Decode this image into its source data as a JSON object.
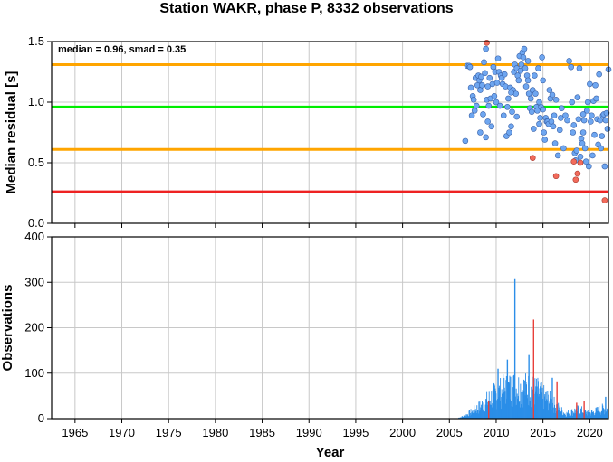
{
  "chart_data": [
    {
      "type": "scatter",
      "title": "Station WAKR, phase P, 8332 observations",
      "ylabel": "Median residual [s]",
      "xlim": [
        1962.5,
        2022.0
      ],
      "ylim": [
        0.0,
        1.5
      ],
      "yticks": [
        "0.0",
        "0.5",
        "1.0",
        "1.5"
      ],
      "grid": true,
      "annotation": "median = 0.96, smad = 0.35",
      "hlines": [
        {
          "value": 1.31,
          "color": "#ffa500"
        },
        {
          "value": 0.96,
          "color": "#00ee00"
        },
        {
          "value": 0.61,
          "color": "#ffa500"
        },
        {
          "value": 0.26,
          "color": "#ee2222"
        }
      ],
      "point_colors": {
        "normal": "#6ea6f0",
        "outlier": "#f26b5b"
      },
      "points": [
        [
          2006.9,
          1.3
        ],
        [
          2007.1,
          1.3
        ],
        [
          2007.2,
          1.29
        ],
        [
          2007.3,
          1.12
        ],
        [
          2007.4,
          0.89
        ],
        [
          2007.5,
          1.05
        ],
        [
          2007.6,
          1.02
        ],
        [
          2007.7,
          0.93
        ],
        [
          2007.8,
          1.2
        ],
        [
          2007.9,
          0.97
        ],
        [
          2008.0,
          1.14
        ],
        [
          2008.1,
          1.22
        ],
        [
          2008.2,
          1.18
        ],
        [
          2008.3,
          1.1
        ],
        [
          2008.4,
          1.21
        ],
        [
          2008.5,
          1.14
        ],
        [
          2008.6,
          0.9
        ],
        [
          2008.7,
          1.33
        ],
        [
          2008.8,
          1.24
        ],
        [
          2008.9,
          1.44
        ],
        [
          2009.0,
          1.02
        ],
        [
          2009.1,
          0.84
        ],
        [
          2009.2,
          0.97
        ],
        [
          2009.3,
          1.2
        ],
        [
          2009.4,
          1.03
        ],
        [
          2009.5,
          0.8
        ],
        [
          2009.6,
          1.15
        ],
        [
          2009.7,
          1.29
        ],
        [
          2009.8,
          1.05
        ],
        [
          2009.9,
          1.25
        ],
        [
          2006.7,
          0.68
        ],
        [
          2008.3,
          0.75
        ],
        [
          2010.0,
          1.0
        ],
        [
          2010.1,
          1.16
        ],
        [
          2010.2,
          1.36
        ],
        [
          2010.3,
          1.25
        ],
        [
          2010.4,
          0.97
        ],
        [
          2010.5,
          1.22
        ],
        [
          2010.6,
          1.2
        ],
        [
          2010.7,
          1.15
        ],
        [
          2010.8,
          0.89
        ],
        [
          2010.9,
          1.23
        ],
        [
          2011.0,
          1.13
        ],
        [
          2011.1,
          0.72
        ],
        [
          2011.2,
          0.96
        ],
        [
          2011.3,
          1.03
        ],
        [
          2011.4,
          0.75
        ],
        [
          2011.5,
          1.12
        ],
        [
          2011.6,
          0.8
        ],
        [
          2011.7,
          0.92
        ],
        [
          2011.8,
          1.1
        ],
        [
          2011.9,
          1.25
        ],
        [
          2012.0,
          1.31
        ],
        [
          2012.1,
          1.07
        ],
        [
          2012.2,
          1.28
        ],
        [
          2012.3,
          1.22
        ],
        [
          2012.4,
          1.18
        ],
        [
          2012.5,
          1.38
        ],
        [
          2012.6,
          1.26
        ],
        [
          2012.7,
          1.31
        ],
        [
          2012.8,
          1.41
        ],
        [
          2012.9,
          1.37
        ],
        [
          2013.0,
          1.44
        ],
        [
          2013.1,
          1.28
        ],
        [
          2013.2,
          1.13
        ],
        [
          2013.3,
          1.22
        ],
        [
          2013.4,
          1.18
        ],
        [
          2013.5,
          1.07
        ],
        [
          2013.6,
          0.95
        ],
        [
          2013.7,
          1.03
        ],
        [
          2013.8,
          0.92
        ],
        [
          2013.9,
          1.1
        ],
        [
          2014.0,
          0.78
        ],
        [
          2014.1,
          1.22
        ],
        [
          2014.2,
          1.07
        ],
        [
          2014.3,
          0.96
        ],
        [
          2014.4,
          0.93
        ],
        [
          2014.5,
          1.28
        ],
        [
          2014.6,
          0.82
        ],
        [
          2014.7,
          0.87
        ],
        [
          2014.8,
          0.96
        ],
        [
          2014.9,
          1.37
        ],
        [
          2015.0,
          0.94
        ],
        [
          2015.1,
          0.75
        ],
        [
          2015.2,
          0.69
        ],
        [
          2015.3,
          0.87
        ],
        [
          2015.4,
          0.84
        ],
        [
          2015.5,
          0.84
        ],
        [
          2015.6,
          0.82
        ],
        [
          2015.7,
          1.1
        ],
        [
          2015.8,
          1.03
        ],
        [
          2015.9,
          0.84
        ],
        [
          2016.0,
          1.06
        ],
        [
          2016.1,
          0.8
        ],
        [
          2016.2,
          0.89
        ],
        [
          2016.3,
          0.66
        ],
        [
          2016.4,
          1.02
        ],
        [
          2016.6,
          0.56
        ],
        [
          2016.8,
          0.77
        ],
        [
          2017.0,
          0.95
        ],
        [
          2017.2,
          0.62
        ],
        [
          2017.4,
          0.89
        ],
        [
          2017.6,
          0.85
        ],
        [
          2017.8,
          1.34
        ],
        [
          2018.0,
          1.29
        ],
        [
          2018.1,
          1.0
        ],
        [
          2018.2,
          0.75
        ],
        [
          2018.3,
          0.81
        ],
        [
          2018.4,
          0.58
        ],
        [
          2018.5,
          0.52
        ],
        [
          2018.6,
          0.6
        ],
        [
          2018.7,
          1.04
        ],
        [
          2018.8,
          0.86
        ],
        [
          2018.9,
          1.28
        ],
        [
          2019.0,
          0.55
        ],
        [
          2019.1,
          0.7
        ],
        [
          2019.2,
          0.66
        ],
        [
          2019.3,
          0.9
        ],
        [
          2019.4,
          0.85
        ],
        [
          2019.5,
          0.62
        ],
        [
          2019.6,
          0.51
        ],
        [
          2019.7,
          0.93
        ],
        [
          2019.8,
          1.0
        ],
        [
          2019.9,
          0.47
        ],
        [
          2020.0,
          1.15
        ],
        [
          2020.1,
          0.84
        ],
        [
          2020.2,
          0.89
        ],
        [
          2020.3,
          0.56
        ],
        [
          2020.4,
          1.01
        ],
        [
          2020.5,
          0.73
        ],
        [
          2020.6,
          1.14
        ],
        [
          2020.7,
          1.03
        ],
        [
          2020.8,
          0.86
        ],
        [
          2020.9,
          0.65
        ],
        [
          2021.0,
          1.23
        ],
        [
          2021.1,
          0.85
        ],
        [
          2021.2,
          0.62
        ],
        [
          2021.3,
          0.72
        ],
        [
          2021.4,
          0.89
        ],
        [
          2021.5,
          0.9
        ],
        [
          2021.6,
          0.47
        ],
        [
          2021.7,
          0.85
        ],
        [
          2021.8,
          0.91
        ],
        [
          2021.9,
          0.78
        ],
        [
          2022.0,
          1.27
        ],
        [
          2012.2,
          0.88
        ],
        [
          2013.4,
          1.34
        ],
        [
          2011.6,
          1.08
        ],
        [
          2009.1,
          1.13
        ],
        [
          2014.6,
          1.0
        ],
        [
          2008.9,
          0.71
        ],
        [
          2015.0,
          1.18
        ],
        [
          2016.9,
          0.87
        ],
        [
          2019.3,
          0.75
        ]
      ],
      "outlier_points": [
        [
          2009.0,
          1.49
        ],
        [
          2013.9,
          0.54
        ],
        [
          2016.4,
          0.39
        ],
        [
          2018.3,
          0.51
        ],
        [
          2018.5,
          0.36
        ],
        [
          2018.7,
          0.41
        ],
        [
          2019.0,
          0.5
        ],
        [
          2021.6,
          0.19
        ]
      ]
    },
    {
      "type": "bar",
      "xlabel": "Year",
      "ylabel": "Observations",
      "xlim": [
        1962.5,
        2022.0
      ],
      "ylim": [
        0,
        400
      ],
      "yticks": [
        "0",
        "100",
        "200",
        "300",
        "400"
      ],
      "xticks": [
        "1965",
        "1970",
        "1975",
        "1980",
        "1985",
        "1990",
        "1995",
        "2000",
        "2005",
        "2010",
        "2015",
        "2020"
      ],
      "grid": true,
      "bar_colors": {
        "normal": "#2b8ee8",
        "outlier": "#e8403a"
      },
      "spikes": [
        {
          "x": 2012.0,
          "value": 307
        },
        {
          "x": 2014.0,
          "value": 218,
          "outlier": true
        },
        {
          "x": 2016.0,
          "value": 90
        },
        {
          "x": 2016.5,
          "value": 82,
          "outlier": true
        },
        {
          "x": 2013.5,
          "value": 140
        },
        {
          "x": 2011.2,
          "value": 130
        },
        {
          "x": 2010.2,
          "value": 110
        },
        {
          "x": 2009.2,
          "value": 40,
          "outlier": true
        },
        {
          "x": 2018.6,
          "value": 35,
          "outlier": true
        },
        {
          "x": 2021.7,
          "value": 48
        },
        {
          "x": 2019.4,
          "value": 38,
          "outlier": true
        }
      ],
      "envelope": [
        [
          2006.0,
          3
        ],
        [
          2006.6,
          8
        ],
        [
          2007.2,
          18
        ],
        [
          2007.8,
          30
        ],
        [
          2008.4,
          40
        ],
        [
          2009.0,
          55
        ],
        [
          2009.6,
          70
        ],
        [
          2010.2,
          80
        ],
        [
          2010.8,
          90
        ],
        [
          2011.4,
          95
        ],
        [
          2012.0,
          100
        ],
        [
          2012.6,
          98
        ],
        [
          2013.2,
          95
        ],
        [
          2013.8,
          92
        ],
        [
          2014.4,
          85
        ],
        [
          2015.0,
          70
        ],
        [
          2015.6,
          60
        ],
        [
          2016.2,
          45
        ],
        [
          2016.8,
          30
        ],
        [
          2017.4,
          15
        ],
        [
          2018.0,
          20
        ],
        [
          2018.6,
          28
        ],
        [
          2019.2,
          25
        ],
        [
          2019.8,
          18
        ],
        [
          2020.4,
          20
        ],
        [
          2021.0,
          28
        ],
        [
          2021.6,
          32
        ],
        [
          2022.0,
          30
        ]
      ]
    }
  ]
}
